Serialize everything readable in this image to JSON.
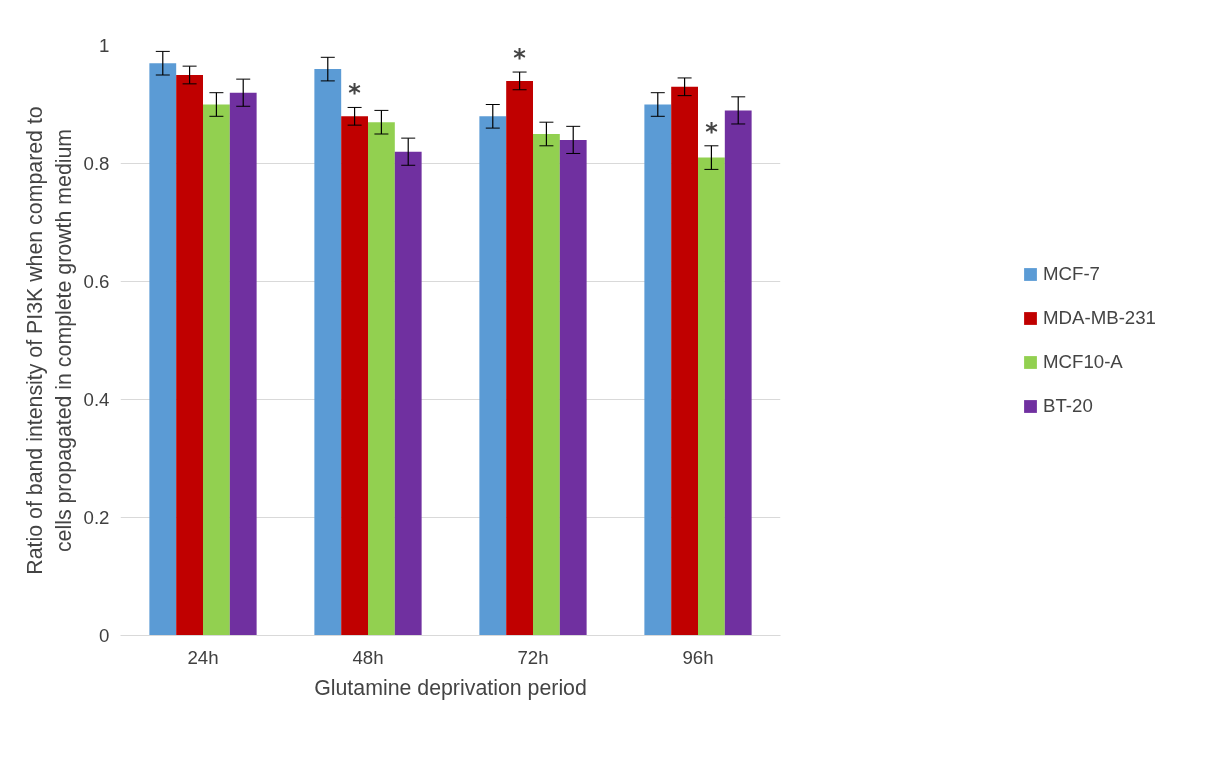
{
  "chart_data": {
    "type": "bar",
    "xlabel": "Glutamine deprivation period",
    "ylabel": "Ratio of band intensity of PI3K when compared to\ncells propagated in complete growth medium",
    "categories": [
      "24h",
      "48h",
      "72h",
      "96h"
    ],
    "series": [
      {
        "name": "MCF-7",
        "color": "#5b9bd5",
        "values": [
          0.97,
          0.96,
          0.88,
          0.9
        ],
        "errors": [
          0.02,
          0.02,
          0.02,
          0.02
        ]
      },
      {
        "name": "MDA-MB-231",
        "color": "#c00000",
        "values": [
          0.95,
          0.88,
          0.94,
          0.93
        ],
        "errors": [
          0.015,
          0.015,
          0.015,
          0.015
        ]
      },
      {
        "name": "MCF10-A",
        "color": "#92d050",
        "values": [
          0.9,
          0.87,
          0.85,
          0.81
        ],
        "errors": [
          0.02,
          0.02,
          0.02,
          0.02
        ]
      },
      {
        "name": "BT-20",
        "color": "#7030a0",
        "values": [
          0.92,
          0.82,
          0.84,
          0.89
        ],
        "errors": [
          0.023,
          0.023,
          0.023,
          0.023
        ]
      }
    ],
    "ylim": [
      0,
      1
    ],
    "yticks": [
      0,
      0.2,
      0.4,
      0.6,
      0.8,
      1
    ],
    "grid": "y",
    "legend": "right",
    "annotations": [
      {
        "text": "*",
        "x": "48h",
        "y": 0.88
      },
      {
        "text": "*",
        "x": "72h",
        "y": 0.94
      },
      {
        "text": "*",
        "x": "96h",
        "y": 0.81
      }
    ]
  }
}
